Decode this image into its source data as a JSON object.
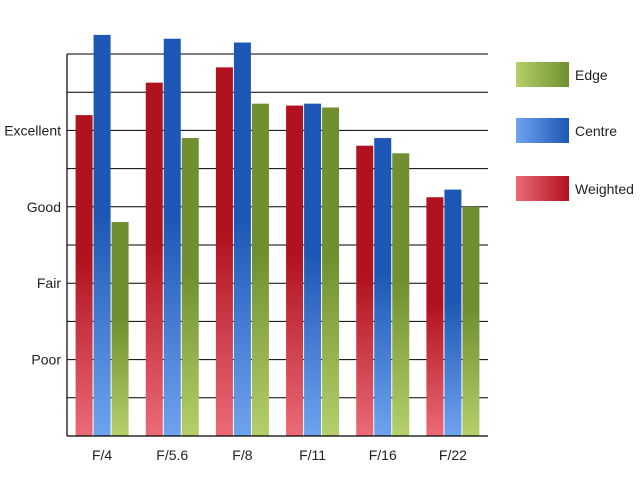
{
  "chart_data": {
    "type": "bar",
    "title": "",
    "xlabel": "",
    "ylabel": "",
    "categories": [
      "F/4",
      "F/5.6",
      "F/8",
      "F/11",
      "F/16",
      "F/22"
    ],
    "y_scale": "ordinal rating; one named level per two gridlines",
    "y_tick_labels": [
      "Poor",
      "Fair",
      "Good",
      "Excellent"
    ],
    "y_tick_positions": [
      2,
      4,
      6,
      8
    ],
    "ylim": [
      0,
      10
    ],
    "grid": true,
    "legend_position": "right",
    "series": [
      {
        "name": "Weighted",
        "values": [
          8.4,
          9.25,
          9.65,
          8.65,
          7.6,
          6.25
        ],
        "color_light": "#ea6b77",
        "color_dark": "#b0121e"
      },
      {
        "name": "Centre",
        "values": [
          10.5,
          10.4,
          10.3,
          8.7,
          7.8,
          6.45
        ],
        "color_light": "#6ea3ee",
        "color_dark": "#1d57b5"
      },
      {
        "name": "Edge",
        "values": [
          5.6,
          7.8,
          8.7,
          8.6,
          7.4,
          6.0
        ],
        "color_light": "#b5d06a",
        "color_dark": "#6f8f30"
      }
    ],
    "legend": [
      "Edge",
      "Centre",
      "Weighted"
    ]
  }
}
